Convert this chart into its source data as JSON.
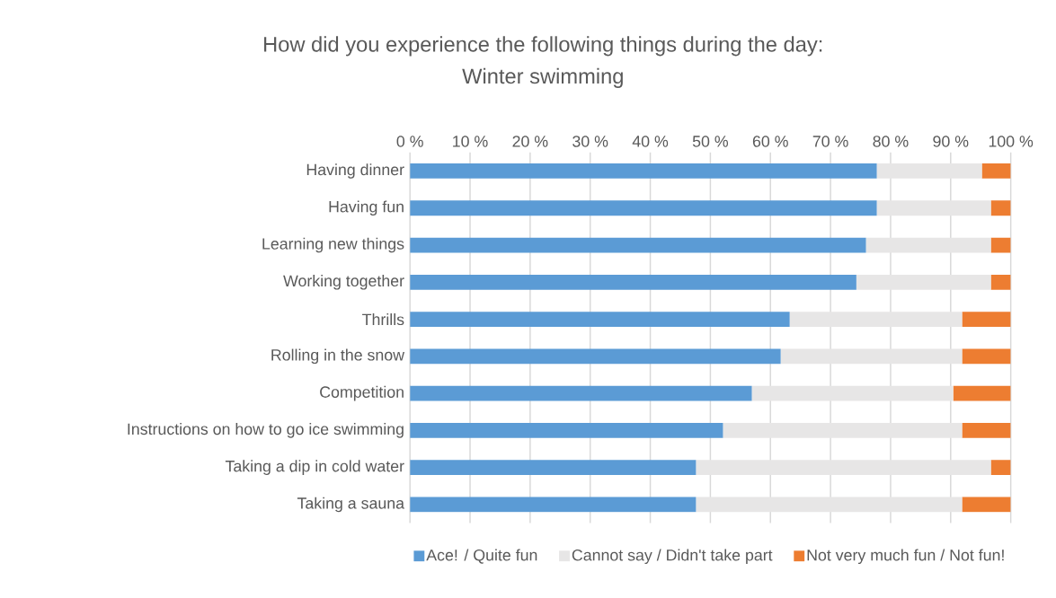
{
  "chart_data": {
    "type": "bar",
    "orientation": "horizontal",
    "stacked": true,
    "title": "How did you experience the following things during the day:",
    "subtitle": "Winter swimming",
    "categories": [
      "Having dinner",
      "Having fun",
      "Learning new things",
      "Working together",
      "Thrills",
      "Rolling in the snow",
      "Competition",
      "Instructions on how to go ice swimming",
      "Taking a dip in cold water",
      "Taking a sauna"
    ],
    "series": [
      {
        "name": "Ace! / Quite fun",
        "color": "#5b9bd5",
        "values": [
          77.7,
          77.7,
          75.9,
          74.3,
          63.2,
          61.7,
          56.9,
          52.1,
          47.6,
          47.6
        ]
      },
      {
        "name": "Cannot say / Didn't take part",
        "color": "#e7e6e6",
        "values": [
          17.5,
          19.0,
          20.8,
          22.4,
          28.7,
          30.2,
          33.5,
          39.8,
          49.1,
          44.3
        ]
      },
      {
        "name": "Not very much fun / Not fun!",
        "color": "#ed7d31",
        "values": [
          4.8,
          3.3,
          3.3,
          3.3,
          8.1,
          8.1,
          9.6,
          8.1,
          3.3,
          8.1
        ]
      }
    ],
    "xlim": [
      0,
      100
    ],
    "xticks": [
      {
        "value": 0,
        "label": "0 %"
      },
      {
        "value": 10,
        "label": "10 %"
      },
      {
        "value": 20,
        "label": "20 %"
      },
      {
        "value": 30,
        "label": "30 %"
      },
      {
        "value": 40,
        "label": "40 %"
      },
      {
        "value": 50,
        "label": "50 %"
      },
      {
        "value": 60,
        "label": "60 %"
      },
      {
        "value": 70,
        "label": "70 %"
      },
      {
        "value": 80,
        "label": "80 %"
      },
      {
        "value": 90,
        "label": "90 %"
      },
      {
        "value": 100,
        "label": "100 %"
      }
    ],
    "grid": "x",
    "legend": "bottom"
  }
}
